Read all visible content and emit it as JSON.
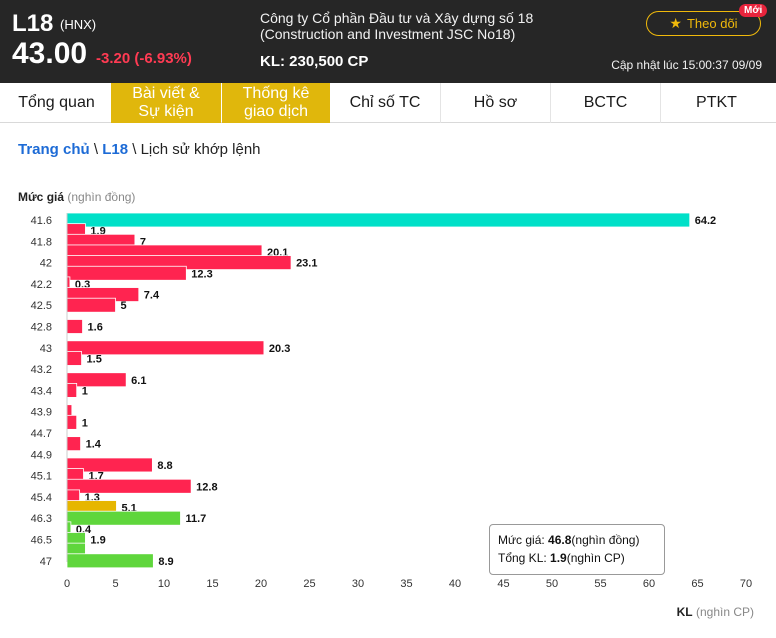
{
  "header": {
    "symbol": "L18",
    "exchange": "(HNX)",
    "price": "43.00",
    "change": "-3.20 (-6.93%)",
    "company_line1": "Công ty Cổ phần Đầu tư và Xây dựng số 18",
    "company_line2": "(Construction and Investment JSC No18)",
    "volume": "KL: 230,500 CP",
    "updated": "Cập nhật lúc 15:00:37 09/09",
    "follow_label": "Theo dõi",
    "new_badge": "Mới"
  },
  "tabs": [
    {
      "line1": "Tổng quan",
      "line2": ""
    },
    {
      "line1": "Bài viết &",
      "line2": "Sự kiện"
    },
    {
      "line1": "Thống kê",
      "line2": "giao dịch"
    },
    {
      "line1": "Chỉ số TC",
      "line2": ""
    },
    {
      "line1": "Hồ sơ",
      "line2": ""
    },
    {
      "line1": "BCTC",
      "line2": ""
    },
    {
      "line1": "PTKT",
      "line2": ""
    }
  ],
  "breadcrumb": {
    "home": "Trang chủ",
    "sep1": " \\ ",
    "symbol": "L18",
    "sep2": " \\ ",
    "current": "Lịch sử khớp lệnh"
  },
  "colors": {
    "red": "#ff2450",
    "cyan": "#00e0c8",
    "yellow": "#e6b600",
    "green": "#5fd63c",
    "tab_active": "#e0b70c",
    "accent_link": "#1d6bd6"
  },
  "chart_data": {
    "type": "bar",
    "orientation": "horizontal",
    "ylabel": "Mức giá",
    "ylabel_unit": "(nghìn đồng)",
    "xlabel": "KL",
    "xlabel_unit": "(nghìn CP)",
    "xlim": [
      0,
      70
    ],
    "xticks": [
      0,
      5,
      10,
      15,
      20,
      25,
      30,
      35,
      40,
      45,
      50,
      55,
      60,
      65,
      70
    ],
    "categories": [
      "41.6",
      "41.8",
      "42",
      "42.2",
      "42.5",
      "42.8",
      "43",
      "43.2",
      "43.4",
      "43.9",
      "44.7",
      "44.9",
      "45.1",
      "45.4",
      "46.3",
      "46.5",
      "47"
    ],
    "bars": [
      {
        "row": 0,
        "value": 64.2,
        "color": "cyan",
        "label": "64.2"
      },
      {
        "row": 0.5,
        "value": 1.9,
        "color": "red",
        "label": "1.9"
      },
      {
        "row": 1,
        "value": 7,
        "color": "red",
        "label": "7"
      },
      {
        "row": 1.5,
        "value": 20.1,
        "color": "red",
        "label": "20.1"
      },
      {
        "row": 2,
        "value": 23.1,
        "color": "red",
        "label": "23.1"
      },
      {
        "row": 2.5,
        "value": 12.3,
        "color": "red",
        "label": "12.3"
      },
      {
        "row": 3,
        "value": 0.3,
        "color": "red",
        "label": "0.3"
      },
      {
        "row": 3.5,
        "value": 7.4,
        "color": "red",
        "label": "7.4"
      },
      {
        "row": 4,
        "value": 5,
        "color": "red",
        "label": "5"
      },
      {
        "row": 5,
        "value": 1.6,
        "color": "red",
        "label": "1.6"
      },
      {
        "row": 6,
        "value": 20.3,
        "color": "red",
        "label": "20.3"
      },
      {
        "row": 6.5,
        "value": 1.5,
        "color": "red",
        "label": "1.5"
      },
      {
        "row": 7.5,
        "value": 6.1,
        "color": "red",
        "label": "6.1"
      },
      {
        "row": 8,
        "value": 1,
        "color": "red",
        "label": "1"
      },
      {
        "row": 9,
        "value": 0.5,
        "color": "red",
        "label": ""
      },
      {
        "row": 9.5,
        "value": 1,
        "color": "red",
        "label": "1"
      },
      {
        "row": 10.5,
        "value": 1.4,
        "color": "red",
        "label": "1.4"
      },
      {
        "row": 11.5,
        "value": 8.8,
        "color": "red",
        "label": "8.8"
      },
      {
        "row": 12,
        "value": 1.7,
        "color": "red",
        "label": "1.7"
      },
      {
        "row": 12.5,
        "value": 12.8,
        "color": "red",
        "label": "12.8"
      },
      {
        "row": 13,
        "value": 1.3,
        "color": "red",
        "label": "1.3"
      },
      {
        "row": 13.5,
        "value": 5.1,
        "color": "yellow",
        "label": "5.1"
      },
      {
        "row": 14,
        "value": 11.7,
        "color": "green",
        "label": "11.7"
      },
      {
        "row": 14.5,
        "value": 0.4,
        "color": "green",
        "label": "0.4"
      },
      {
        "row": 15,
        "value": 1.9,
        "color": "green",
        "label": "1.9"
      },
      {
        "row": 15.5,
        "value": 1.9,
        "color": "green",
        "label": ""
      },
      {
        "row": 16,
        "value": 8.9,
        "color": "green",
        "label": "8.9"
      }
    ]
  },
  "tooltip": {
    "price_label": "Mức giá: ",
    "price_value": "46.8",
    "price_unit": "(nghìn đồng)",
    "vol_label": "Tổng KL: ",
    "vol_value": "1.9",
    "vol_unit": "(nghìn CP)"
  }
}
